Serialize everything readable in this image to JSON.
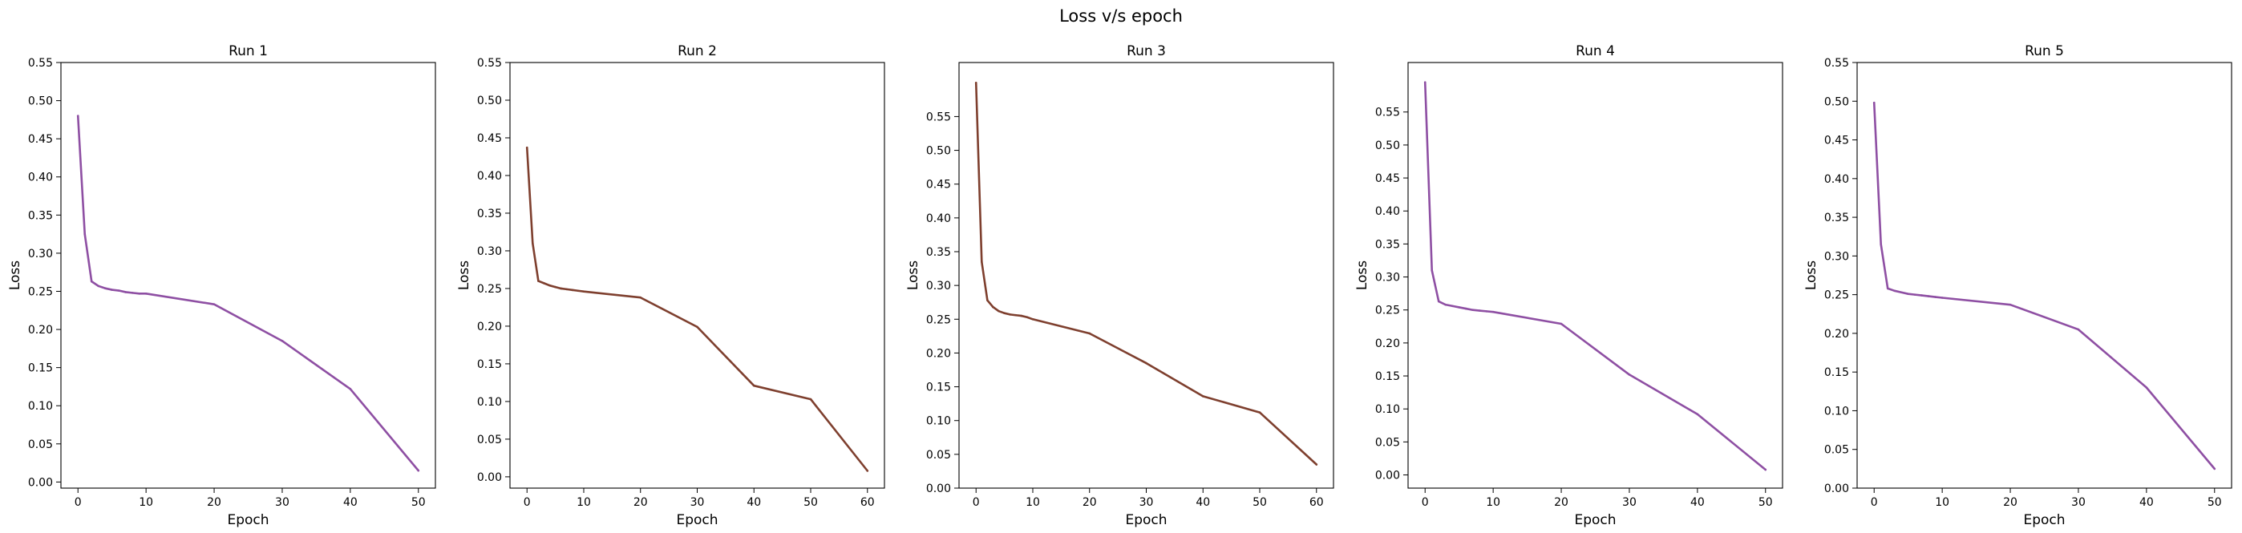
{
  "figure": {
    "title": "Loss v/s epoch"
  },
  "chart_data": [
    {
      "type": "line",
      "title": "Run 1",
      "xlabel": "Epoch",
      "ylabel": "Loss",
      "xlim": [
        -2.5,
        52.5
      ],
      "ylim": [
        -0.008,
        0.55
      ],
      "xticks": [
        0,
        10,
        20,
        30,
        40,
        50
      ],
      "yticks": [
        0.0,
        0.05,
        0.1,
        0.15,
        0.2,
        0.25,
        0.3,
        0.35,
        0.4,
        0.45,
        0.5,
        0.55
      ],
      "color": "#8e4fa3",
      "grid": false,
      "x": [
        0,
        1,
        2,
        3,
        4,
        5,
        6,
        7,
        8,
        9,
        10,
        20,
        30,
        40,
        50
      ],
      "y": [
        0.48,
        0.325,
        0.263,
        0.257,
        0.254,
        0.252,
        0.251,
        0.249,
        0.248,
        0.247,
        0.247,
        0.233,
        0.185,
        0.122,
        0.015
      ]
    },
    {
      "type": "line",
      "title": "Run 2",
      "xlabel": "Epoch",
      "ylabel": "Loss",
      "xlim": [
        -3,
        63
      ],
      "ylim": [
        -0.015,
        0.55
      ],
      "xticks": [
        0,
        10,
        20,
        30,
        40,
        50,
        60
      ],
      "yticks": [
        0.0,
        0.05,
        0.1,
        0.15,
        0.2,
        0.25,
        0.3,
        0.35,
        0.4,
        0.45,
        0.5,
        0.55
      ],
      "color": "#7e3f2e",
      "grid": false,
      "x": [
        0,
        1,
        2,
        3,
        4,
        5,
        6,
        7,
        8,
        9,
        10,
        20,
        30,
        40,
        50,
        60
      ],
      "y": [
        0.437,
        0.31,
        0.26,
        0.257,
        0.254,
        0.252,
        0.25,
        0.249,
        0.248,
        0.247,
        0.246,
        0.238,
        0.199,
        0.121,
        0.103,
        0.008
      ]
    },
    {
      "type": "line",
      "title": "Run 3",
      "xlabel": "Epoch",
      "ylabel": "Loss",
      "xlim": [
        -3,
        63
      ],
      "ylim": [
        0.0,
        0.63
      ],
      "xticks": [
        0,
        10,
        20,
        30,
        40,
        50,
        60
      ],
      "yticks": [
        0.0,
        0.05,
        0.1,
        0.15,
        0.2,
        0.25,
        0.3,
        0.35,
        0.4,
        0.45,
        0.5,
        0.55
      ],
      "color": "#7e3f2e",
      "grid": false,
      "x": [
        0,
        1,
        2,
        3,
        4,
        5,
        6,
        7,
        8,
        9,
        10,
        20,
        30,
        40,
        50,
        60
      ],
      "y": [
        0.6,
        0.335,
        0.278,
        0.268,
        0.262,
        0.259,
        0.257,
        0.256,
        0.255,
        0.253,
        0.25,
        0.229,
        0.185,
        0.136,
        0.112,
        0.035
      ]
    },
    {
      "type": "line",
      "title": "Run 4",
      "xlabel": "Epoch",
      "ylabel": "Loss",
      "xlim": [
        -2.5,
        52.5
      ],
      "ylim": [
        -0.02,
        0.625
      ],
      "xticks": [
        0,
        10,
        20,
        30,
        40,
        50
      ],
      "yticks": [
        0.0,
        0.05,
        0.1,
        0.15,
        0.2,
        0.25,
        0.3,
        0.35,
        0.4,
        0.45,
        0.5,
        0.55
      ],
      "color": "#8e4fa3",
      "grid": false,
      "x": [
        0,
        1,
        2,
        3,
        4,
        5,
        6,
        7,
        8,
        9,
        10,
        20,
        30,
        40,
        50
      ],
      "y": [
        0.595,
        0.31,
        0.263,
        0.258,
        0.256,
        0.254,
        0.252,
        0.25,
        0.249,
        0.248,
        0.247,
        0.229,
        0.152,
        0.092,
        0.008
      ]
    },
    {
      "type": "line",
      "title": "Run 5",
      "xlabel": "Epoch",
      "ylabel": "Loss",
      "xlim": [
        -2.5,
        52.5
      ],
      "ylim": [
        0.0,
        0.55
      ],
      "xticks": [
        0,
        10,
        20,
        30,
        40,
        50
      ],
      "yticks": [
        0.0,
        0.05,
        0.1,
        0.15,
        0.2,
        0.25,
        0.3,
        0.35,
        0.4,
        0.45,
        0.5,
        0.55
      ],
      "color": "#8e4fa3",
      "grid": false,
      "x": [
        0,
        1,
        2,
        3,
        4,
        5,
        6,
        7,
        8,
        9,
        10,
        20,
        30,
        40,
        50
      ],
      "y": [
        0.498,
        0.315,
        0.258,
        0.255,
        0.253,
        0.251,
        0.25,
        0.249,
        0.248,
        0.247,
        0.246,
        0.237,
        0.205,
        0.13,
        0.025
      ]
    }
  ]
}
